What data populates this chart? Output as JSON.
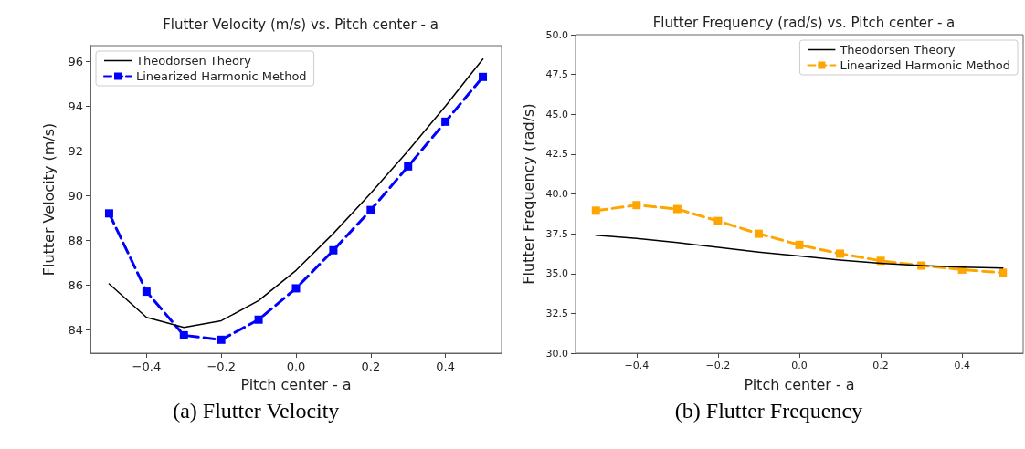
{
  "chart_data": [
    {
      "type": "line",
      "title": "Flutter Velocity (m/s) vs. Pitch center - a",
      "xlabel": "Pitch center - a",
      "ylabel": "Flutter Velocity (m/s)",
      "x": [
        -0.5,
        -0.4,
        -0.3,
        -0.2,
        -0.1,
        0,
        0.1,
        0.2,
        0.3,
        0.4,
        0.5
      ],
      "series": [
        {
          "name": "Theodorsen Theory",
          "color": "#000000",
          "marker": "none",
          "line_style": "solid",
          "values": [
            86.05,
            84.55,
            84.1,
            84.4,
            85.3,
            86.65,
            88.3,
            90.1,
            92.0,
            94.0,
            96.1
          ]
        },
        {
          "name": "Linearized Harmonic Method",
          "color": "#0000ff",
          "marker": "square",
          "line_style": "dashed",
          "values": [
            89.2,
            85.7,
            83.75,
            83.55,
            84.45,
            85.85,
            87.55,
            89.35,
            91.3,
            93.3,
            95.3
          ]
        }
      ],
      "xlim": [
        -0.55,
        0.55
      ],
      "xticks": [
        {
          "value": -0.4,
          "label": "−0.4"
        },
        {
          "value": -0.2,
          "label": "−0.2"
        },
        {
          "value": 0,
          "label": "0.0"
        },
        {
          "value": 0.2,
          "label": "0.2"
        },
        {
          "value": 0.4,
          "label": "0.4"
        }
      ],
      "ylim": [
        82.95,
        96.7
      ],
      "yticks": [
        84,
        86,
        88,
        90,
        92,
        94,
        96
      ],
      "grid": false,
      "legend": "top left",
      "annotations": [
        "(a) Flutter Velocity"
      ]
    },
    {
      "type": "line",
      "title": "Flutter Frequency (rad/s) vs. Pitch center - a",
      "xlabel": "Pitch center - a",
      "ylabel": "Flutter Frequency (rad/s)",
      "x": [
        -0.5,
        -0.4,
        -0.3,
        -0.2,
        -0.1,
        0,
        0.1,
        0.2,
        0.3,
        0.4,
        0.5
      ],
      "series": [
        {
          "name": "Theodorsen Theory",
          "color": "#000000",
          "marker": "none",
          "line_style": "solid",
          "values": [
            37.4,
            37.2,
            36.95,
            36.65,
            36.35,
            36.1,
            35.85,
            35.65,
            35.5,
            35.4,
            35.35
          ]
        },
        {
          "name": "Linearized Harmonic Method",
          "color": "#ffa500",
          "marker": "square",
          "line_style": "dashed",
          "values": [
            38.95,
            39.3,
            39.05,
            38.3,
            37.5,
            36.8,
            36.25,
            35.8,
            35.5,
            35.25,
            35.05
          ]
        }
      ],
      "xlim": [
        -0.55,
        0.55
      ],
      "xticks": [
        {
          "value": -0.4,
          "label": "−0.4"
        },
        {
          "value": -0.2,
          "label": "−0.2"
        },
        {
          "value": 0,
          "label": "0.0"
        },
        {
          "value": 0.2,
          "label": "0.2"
        },
        {
          "value": 0.4,
          "label": "0.4"
        }
      ],
      "ylim": [
        30,
        50
      ],
      "yticks": [
        {
          "value": 30,
          "label": "30.0"
        },
        {
          "value": 32.5,
          "label": "32.5"
        },
        {
          "value": 35,
          "label": "35.0"
        },
        {
          "value": 37.5,
          "label": "37.5"
        },
        {
          "value": 40,
          "label": "40.0"
        },
        {
          "value": 42.5,
          "label": "42.5"
        },
        {
          "value": 45,
          "label": "45.0"
        },
        {
          "value": 47.5,
          "label": "47.5"
        },
        {
          "value": 50,
          "label": "50.0"
        }
      ],
      "grid": false,
      "legend": "top right",
      "annotations": [
        "(b) Flutter Frequency"
      ]
    }
  ]
}
